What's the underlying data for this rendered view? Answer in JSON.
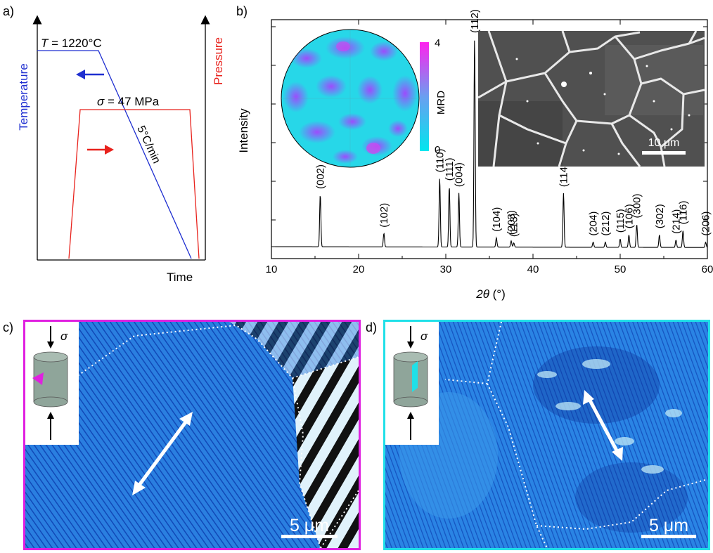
{
  "panel_labels": {
    "a": "a)",
    "b": "b)",
    "c": "c)",
    "d": "d)"
  },
  "panel_a": {
    "temperature_axis": "Temperature",
    "pressure_axis": "Pressure",
    "time_axis": "Time",
    "temperature_var": "T",
    "temperature_value": " = 1220°C",
    "pressure_var": "σ",
    "pressure_value": " = 47 MPa",
    "cooling_rate": "5°C/min",
    "colors": {
      "temperature": "#1f2fd0",
      "pressure": "#e8221c"
    }
  },
  "panel_b": {
    "pole_figure_scale_title": "MRD",
    "pole_figure_scale_max": "4",
    "pole_figure_scale_min": "0",
    "sem_scale_bar": "10 μm",
    "colors": {
      "pole_low": "#00e6ee",
      "pole_high": "#ff22ee"
    }
  },
  "chart_data": {
    "type": "line",
    "xlabel_symbol": "2θ",
    "xlabel_unit": " (°)",
    "ylabel": "Intensity",
    "xlim": [
      10,
      60
    ],
    "xticks": [
      "10",
      "20",
      "30",
      "40",
      "50",
      "60"
    ],
    "baseline": 0.01,
    "peaks": [
      {
        "label": "(002)",
        "x": 15.6,
        "y": 0.25
      },
      {
        "label": "(102)",
        "x": 22.9,
        "y": 0.065
      },
      {
        "label": "(110)",
        "x": 29.3,
        "y": 0.33
      },
      {
        "label": "(111)",
        "x": 30.4,
        "y": 0.29
      },
      {
        "label": "(004)",
        "x": 31.5,
        "y": 0.26
      },
      {
        "label": "(112)",
        "x": 33.3,
        "y": 1.0
      },
      {
        "label": "(104)",
        "x": 35.8,
        "y": 0.045
      },
      {
        "label": "(203)",
        "x": 37.5,
        "y": 0.03
      },
      {
        "label": "(113)",
        "x": 37.8,
        "y": 0.02
      },
      {
        "label": "(114)",
        "x": 43.5,
        "y": 0.26
      },
      {
        "label": "(204)",
        "x": 46.9,
        "y": 0.025
      },
      {
        "label": "(212)",
        "x": 48.3,
        "y": 0.025
      },
      {
        "label": "(115)",
        "x": 50.0,
        "y": 0.04
      },
      {
        "label": "(106)",
        "x": 51.0,
        "y": 0.06
      },
      {
        "label": "(300)",
        "x": 51.9,
        "y": 0.11
      },
      {
        "label": "(302)",
        "x": 54.5,
        "y": 0.06
      },
      {
        "label": "(214)",
        "x": 56.4,
        "y": 0.035
      },
      {
        "label": "(116)",
        "x": 57.2,
        "y": 0.08
      },
      {
        "label": "(206)",
        "x": 59.8,
        "y": 0.025
      }
    ]
  },
  "panel_c": {
    "sigma": "σ",
    "scale_bar": "5 μm",
    "frame_color": "#e020e0"
  },
  "panel_d": {
    "sigma": "σ",
    "scale_bar": "5 μm",
    "frame_color": "#20e0e8"
  }
}
